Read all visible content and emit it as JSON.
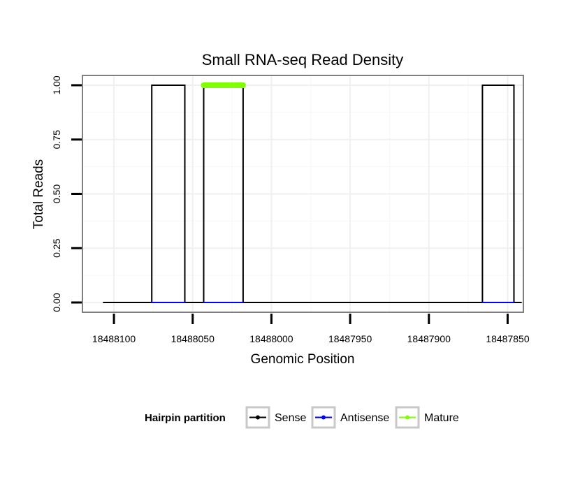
{
  "chart_data": {
    "type": "line",
    "title": "Small RNA-seq Read Density",
    "xlabel": "Genomic Position",
    "ylabel": "Total Reads",
    "x_reversed": true,
    "xlim": [
      18488120,
      18487840
    ],
    "ylim": [
      -0.045,
      1.045
    ],
    "xticks": [
      18488100,
      18488050,
      18488000,
      18487950,
      18487900,
      18487850
    ],
    "xtick_labels": [
      "18488100",
      "18488050",
      "18488000",
      "18487950",
      "18487900",
      "18487850"
    ],
    "yticks": [
      0,
      0.25,
      0.5,
      0.75,
      1
    ],
    "ytick_labels": [
      "0.00",
      "0.25",
      "0.50",
      "0.75",
      "1.00"
    ],
    "grid": true,
    "series": [
      {
        "name": "Sense",
        "color": "#000000",
        "x": [
          18488107,
          18488076,
          18488076,
          18488055,
          18488055,
          18488043,
          18488043,
          18488018,
          18488018,
          18487866,
          18487866,
          18487846,
          18487846,
          18487841
        ],
        "y": [
          0,
          0,
          1,
          1,
          0,
          0,
          1,
          1,
          0,
          0,
          1,
          1,
          0,
          0
        ]
      },
      {
        "name": "Antisense",
        "color": "#0000ff",
        "segments": [
          [
            18488076,
            18488055
          ],
          [
            18488043,
            18488018
          ],
          [
            18487866,
            18487846
          ]
        ],
        "y": 0
      },
      {
        "name": "Mature",
        "color": "#7fff00",
        "segments": [
          [
            18488043,
            18488018
          ]
        ],
        "y": 1
      }
    ],
    "legend": {
      "title": "Hairpin partition",
      "position": "bottom",
      "entries": [
        {
          "label": "Sense",
          "color": "#000000"
        },
        {
          "label": "Antisense",
          "color": "#0000ff"
        },
        {
          "label": "Mature",
          "color": "#7fff00"
        }
      ]
    }
  }
}
